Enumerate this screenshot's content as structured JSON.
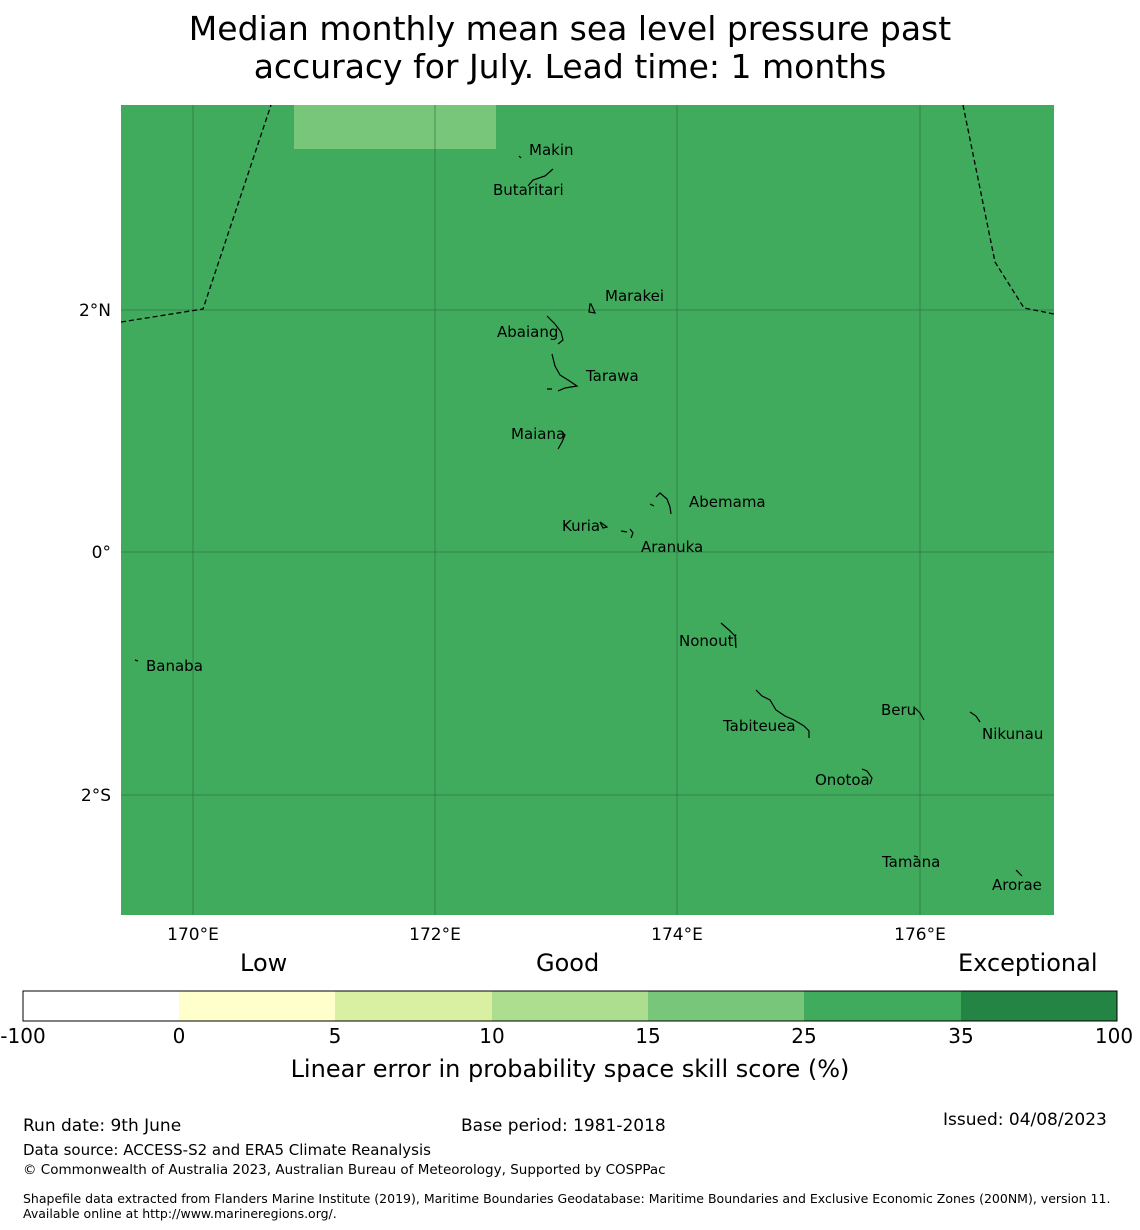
{
  "title": {
    "line1": "Median monthly mean sea level pressure past",
    "line2": "accuracy for July. Lead time: 1 months"
  },
  "map": {
    "background_color": "#41ab5d",
    "lon_ticks": [
      "170°E",
      "172°E",
      "174°E",
      "176°E"
    ],
    "lat_ticks": [
      "2°N",
      "0°",
      "2°S"
    ],
    "patch_color": "#78c679",
    "islands": [
      {
        "name": "Makin"
      },
      {
        "name": "Butaritari"
      },
      {
        "name": "Marakei"
      },
      {
        "name": "Abaiang"
      },
      {
        "name": "Tarawa"
      },
      {
        "name": "Maiana"
      },
      {
        "name": "Abemama"
      },
      {
        "name": "Kuria"
      },
      {
        "name": "Aranuka"
      },
      {
        "name": "Nonouti"
      },
      {
        "name": "Banaba"
      },
      {
        "name": "Beru"
      },
      {
        "name": "Tabiteuea"
      },
      {
        "name": "Nikunau"
      },
      {
        "name": "Onotoa"
      },
      {
        "name": "Tamana"
      },
      {
        "name": "Arorae"
      }
    ]
  },
  "colorbar": {
    "headers": {
      "low": "Low",
      "good": "Good",
      "exceptional": "Exceptional"
    },
    "ticks": [
      "-100",
      "0",
      "5",
      "10",
      "15",
      "25",
      "35",
      "100"
    ],
    "colors": [
      "#ffffff",
      "#ffffcc",
      "#d9f0a3",
      "#addd8e",
      "#78c679",
      "#41ab5d",
      "#238443"
    ],
    "label": "Linear error in probability space skill score (%)"
  },
  "footer": {
    "run_date": "Run date: 9th June",
    "base_period": "Base period: 1981-2018",
    "issued": "Issued: 04/08/2023",
    "data_source": "Data source: ACCESS-S2 and ERA5 Climate Reanalysis",
    "copyright": "© Commonwealth of Australia 2023, Australian Bureau of Meteorology, Supported by COSPPac",
    "shapefile": "Shapefile data extracted from Flanders Marine Institute (2019), Maritime Boundaries Geodatabase: Maritime Boundaries and Exclusive Economic Zones (200NM), version 11. Available online at http://www.marineregions.org/."
  }
}
